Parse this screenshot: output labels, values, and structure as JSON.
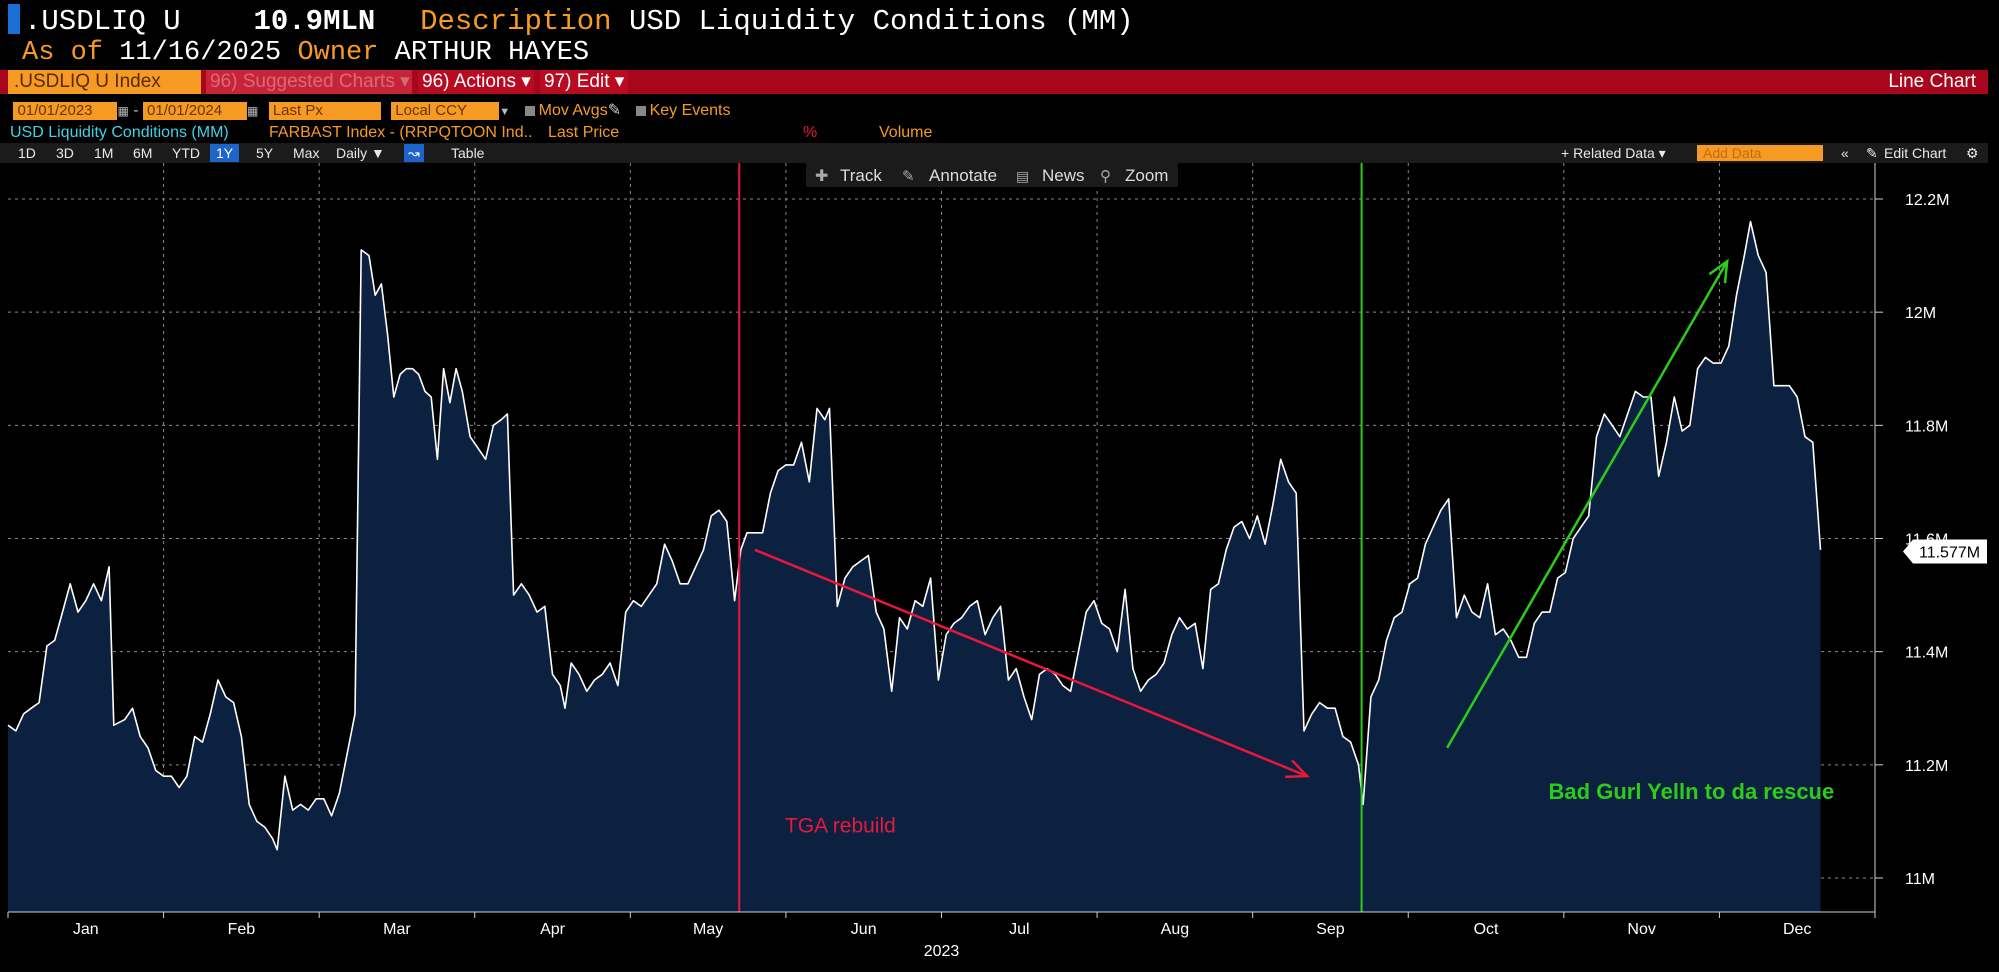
{
  "header": {
    "ticker": ".USDLIQ U",
    "value": "10.9MLN",
    "desc_label": "Description",
    "desc_value": "USD Liquidity Conditions (MM)",
    "asof_label": "As of",
    "asof_value": "11/16/2025",
    "owner_label": "Owner",
    "owner_value": "ARTHUR HAYES"
  },
  "toolbar": {
    "index_field": ".USDLIQ U Index",
    "suggested": "96) Suggested Charts ▾",
    "actions": "96) Actions ▾",
    "edit": "97) Edit ▾",
    "line_chart": "Line Chart"
  },
  "controls": {
    "start_date": "01/01/2023",
    "end_date": "01/01/2024",
    "field": "Last Px",
    "currency": "Local CCY",
    "mov_avgs": "Mov Avgs",
    "key_events": "Key Events"
  },
  "legend": {
    "series1": "USD Liquidity Conditions (MM)",
    "series2": "FARBAST Index - (RRPQTOON Ind..",
    "last_price": "Last Price",
    "percent": "%",
    "volume": "Volume"
  },
  "period_bar": {
    "periods": [
      "1D",
      "3D",
      "1M",
      "6M",
      "YTD",
      "1Y",
      "5Y",
      "Max"
    ],
    "selected": "1Y",
    "frequency": "Daily ▼",
    "table": "Table",
    "related": "+ Related Data ▾",
    "add_data_placeholder": "Add Data",
    "edit_chart": "Edit Chart"
  },
  "chart_tools": {
    "track": "Track",
    "annotate": "Annotate",
    "news": "News",
    "zoom": "Zoom"
  },
  "colors": {
    "fill": "#0c2140",
    "line": "#ffffff",
    "grid": "#8a8a8a",
    "red_annotation": "#e8173c",
    "green_annotation": "#2bcc1a",
    "toolbar_red": "#a8061c",
    "orange": "#f59a23"
  },
  "chart_data": {
    "type": "area",
    "title": "USD Liquidity Conditions (MM)",
    "x_axis": {
      "months": [
        "Jan",
        "Feb",
        "Mar",
        "Apr",
        "May",
        "Jun",
        "Jul",
        "Aug",
        "Sep",
        "Oct",
        "Nov",
        "Dec"
      ],
      "year": "2023",
      "range_months": [
        0,
        12
      ]
    },
    "y_axis": {
      "unit": "M",
      "ticks": [
        11.0,
        11.2,
        11.4,
        11.6,
        11.8,
        12.0,
        12.2
      ],
      "tick_labels": [
        "11M",
        "11.2M",
        "11.4M",
        "11.6M",
        "11.8M",
        "12M",
        "12.2M"
      ],
      "ylim": [
        10.94,
        12.25
      ]
    },
    "last_value_label": "11.577M",
    "last_value": 11.577,
    "series_points_month_value": [
      [
        0.0,
        11.27
      ],
      [
        0.05,
        11.26
      ],
      [
        0.1,
        11.29
      ],
      [
        0.15,
        11.3
      ],
      [
        0.2,
        11.31
      ],
      [
        0.25,
        11.41
      ],
      [
        0.3,
        11.42
      ],
      [
        0.35,
        11.47
      ],
      [
        0.4,
        11.52
      ],
      [
        0.45,
        11.47
      ],
      [
        0.5,
        11.49
      ],
      [
        0.55,
        11.52
      ],
      [
        0.6,
        11.49
      ],
      [
        0.65,
        11.55
      ],
      [
        0.68,
        11.27
      ],
      [
        0.75,
        11.28
      ],
      [
        0.8,
        11.3
      ],
      [
        0.85,
        11.25
      ],
      [
        0.9,
        11.23
      ],
      [
        0.95,
        11.19
      ],
      [
        1.0,
        11.18
      ],
      [
        1.05,
        11.18
      ],
      [
        1.1,
        11.16
      ],
      [
        1.15,
        11.18
      ],
      [
        1.2,
        11.25
      ],
      [
        1.25,
        11.24
      ],
      [
        1.3,
        11.29
      ],
      [
        1.35,
        11.35
      ],
      [
        1.4,
        11.32
      ],
      [
        1.45,
        11.31
      ],
      [
        1.5,
        11.25
      ],
      [
        1.55,
        11.13
      ],
      [
        1.6,
        11.1
      ],
      [
        1.65,
        11.09
      ],
      [
        1.7,
        11.07
      ],
      [
        1.73,
        11.05
      ],
      [
        1.78,
        11.18
      ],
      [
        1.83,
        11.12
      ],
      [
        1.88,
        11.13
      ],
      [
        1.93,
        11.12
      ],
      [
        1.98,
        11.14
      ],
      [
        2.03,
        11.14
      ],
      [
        2.08,
        11.11
      ],
      [
        2.13,
        11.15
      ],
      [
        2.18,
        11.22
      ],
      [
        2.23,
        11.29
      ],
      [
        2.27,
        12.11
      ],
      [
        2.32,
        12.1
      ],
      [
        2.36,
        12.03
      ],
      [
        2.4,
        12.05
      ],
      [
        2.44,
        11.96
      ],
      [
        2.48,
        11.85
      ],
      [
        2.52,
        11.89
      ],
      [
        2.56,
        11.9
      ],
      [
        2.6,
        11.9
      ],
      [
        2.64,
        11.89
      ],
      [
        2.68,
        11.86
      ],
      [
        2.72,
        11.85
      ],
      [
        2.76,
        11.74
      ],
      [
        2.8,
        11.9
      ],
      [
        2.84,
        11.84
      ],
      [
        2.88,
        11.9
      ],
      [
        2.92,
        11.86
      ],
      [
        2.97,
        11.78
      ],
      [
        3.02,
        11.76
      ],
      [
        3.07,
        11.74
      ],
      [
        3.12,
        11.8
      ],
      [
        3.17,
        11.81
      ],
      [
        3.21,
        11.82
      ],
      [
        3.25,
        11.5
      ],
      [
        3.3,
        11.52
      ],
      [
        3.35,
        11.5
      ],
      [
        3.4,
        11.47
      ],
      [
        3.45,
        11.48
      ],
      [
        3.5,
        11.36
      ],
      [
        3.55,
        11.34
      ],
      [
        3.58,
        11.3
      ],
      [
        3.62,
        11.38
      ],
      [
        3.67,
        11.36
      ],
      [
        3.72,
        11.33
      ],
      [
        3.77,
        11.35
      ],
      [
        3.82,
        11.36
      ],
      [
        3.87,
        11.38
      ],
      [
        3.92,
        11.34
      ],
      [
        3.97,
        11.47
      ],
      [
        4.02,
        11.49
      ],
      [
        4.07,
        11.48
      ],
      [
        4.12,
        11.5
      ],
      [
        4.17,
        11.52
      ],
      [
        4.22,
        11.59
      ],
      [
        4.27,
        11.56
      ],
      [
        4.32,
        11.52
      ],
      [
        4.37,
        11.52
      ],
      [
        4.42,
        11.55
      ],
      [
        4.47,
        11.58
      ],
      [
        4.52,
        11.64
      ],
      [
        4.57,
        11.65
      ],
      [
        4.62,
        11.63
      ],
      [
        4.67,
        11.49
      ],
      [
        4.71,
        11.58
      ],
      [
        4.75,
        11.61
      ],
      [
        4.8,
        11.61
      ],
      [
        4.85,
        11.61
      ],
      [
        4.9,
        11.68
      ],
      [
        4.95,
        11.72
      ],
      [
        5.0,
        11.73
      ],
      [
        5.05,
        11.73
      ],
      [
        5.1,
        11.77
      ],
      [
        5.15,
        11.7
      ],
      [
        5.2,
        11.83
      ],
      [
        5.25,
        11.81
      ],
      [
        5.28,
        11.83
      ],
      [
        5.33,
        11.48
      ],
      [
        5.38,
        11.53
      ],
      [
        5.43,
        11.55
      ],
      [
        5.48,
        11.56
      ],
      [
        5.53,
        11.57
      ],
      [
        5.58,
        11.47
      ],
      [
        5.63,
        11.44
      ],
      [
        5.68,
        11.33
      ],
      [
        5.73,
        11.46
      ],
      [
        5.78,
        11.44
      ],
      [
        5.83,
        11.49
      ],
      [
        5.88,
        11.48
      ],
      [
        5.93,
        11.53
      ],
      [
        5.98,
        11.35
      ],
      [
        6.03,
        11.43
      ],
      [
        6.08,
        11.45
      ],
      [
        6.13,
        11.46
      ],
      [
        6.18,
        11.48
      ],
      [
        6.23,
        11.49
      ],
      [
        6.28,
        11.43
      ],
      [
        6.33,
        11.46
      ],
      [
        6.38,
        11.48
      ],
      [
        6.43,
        11.35
      ],
      [
        6.48,
        11.37
      ],
      [
        6.53,
        11.32
      ],
      [
        6.58,
        11.28
      ],
      [
        6.63,
        11.36
      ],
      [
        6.68,
        11.37
      ],
      [
        6.73,
        11.36
      ],
      [
        6.78,
        11.34
      ],
      [
        6.83,
        11.33
      ],
      [
        6.88,
        11.4
      ],
      [
        6.93,
        11.47
      ],
      [
        6.98,
        11.49
      ],
      [
        7.03,
        11.45
      ],
      [
        7.08,
        11.44
      ],
      [
        7.13,
        11.4
      ],
      [
        7.18,
        11.51
      ],
      [
        7.23,
        11.37
      ],
      [
        7.28,
        11.33
      ],
      [
        7.33,
        11.35
      ],
      [
        7.38,
        11.36
      ],
      [
        7.43,
        11.38
      ],
      [
        7.48,
        11.43
      ],
      [
        7.53,
        11.46
      ],
      [
        7.58,
        11.44
      ],
      [
        7.63,
        11.45
      ],
      [
        7.68,
        11.37
      ],
      [
        7.73,
        11.51
      ],
      [
        7.78,
        11.52
      ],
      [
        7.83,
        11.58
      ],
      [
        7.88,
        11.62
      ],
      [
        7.93,
        11.63
      ],
      [
        7.98,
        11.6
      ],
      [
        8.03,
        11.64
      ],
      [
        8.08,
        11.59
      ],
      [
        8.13,
        11.66
      ],
      [
        8.18,
        11.74
      ],
      [
        8.23,
        11.7
      ],
      [
        8.28,
        11.68
      ],
      [
        8.33,
        11.26
      ],
      [
        8.38,
        11.29
      ],
      [
        8.43,
        11.31
      ],
      [
        8.48,
        11.3
      ],
      [
        8.53,
        11.3
      ],
      [
        8.58,
        11.25
      ],
      [
        8.63,
        11.24
      ],
      [
        8.68,
        11.2
      ],
      [
        8.71,
        11.13
      ],
      [
        8.76,
        11.32
      ],
      [
        8.81,
        11.35
      ],
      [
        8.86,
        11.42
      ],
      [
        8.91,
        11.46
      ],
      [
        8.96,
        11.47
      ],
      [
        9.01,
        11.52
      ],
      [
        9.06,
        11.53
      ],
      [
        9.11,
        11.59
      ],
      [
        9.16,
        11.62
      ],
      [
        9.21,
        11.65
      ],
      [
        9.26,
        11.67
      ],
      [
        9.31,
        11.46
      ],
      [
        9.36,
        11.5
      ],
      [
        9.41,
        11.47
      ],
      [
        9.46,
        11.46
      ],
      [
        9.51,
        11.52
      ],
      [
        9.56,
        11.43
      ],
      [
        9.61,
        11.44
      ],
      [
        9.66,
        11.42
      ],
      [
        9.71,
        11.39
      ],
      [
        9.76,
        11.39
      ],
      [
        9.81,
        11.45
      ],
      [
        9.86,
        11.47
      ],
      [
        9.91,
        11.47
      ],
      [
        9.96,
        11.53
      ],
      [
        10.01,
        11.54
      ],
      [
        10.06,
        11.6
      ],
      [
        10.11,
        11.62
      ],
      [
        10.16,
        11.64
      ],
      [
        10.21,
        11.78
      ],
      [
        10.26,
        11.82
      ],
      [
        10.31,
        11.8
      ],
      [
        10.36,
        11.78
      ],
      [
        10.41,
        11.82
      ],
      [
        10.46,
        11.86
      ],
      [
        10.51,
        11.85
      ],
      [
        10.56,
        11.85
      ],
      [
        10.61,
        11.71
      ],
      [
        10.66,
        11.77
      ],
      [
        10.71,
        11.85
      ],
      [
        10.76,
        11.79
      ],
      [
        10.81,
        11.8
      ],
      [
        10.86,
        11.9
      ],
      [
        10.91,
        11.92
      ],
      [
        10.96,
        11.91
      ],
      [
        11.01,
        11.91
      ],
      [
        11.06,
        11.94
      ],
      [
        11.11,
        12.03
      ],
      [
        11.16,
        12.1
      ],
      [
        11.2,
        12.16
      ],
      [
        11.25,
        12.1
      ],
      [
        11.3,
        12.07
      ],
      [
        11.35,
        11.87
      ],
      [
        11.4,
        11.87
      ],
      [
        11.45,
        11.87
      ],
      [
        11.5,
        11.85
      ],
      [
        11.55,
        11.78
      ],
      [
        11.6,
        11.77
      ],
      [
        11.65,
        11.58
      ]
    ],
    "vertical_markers": [
      {
        "month": 4.7,
        "color": "#e8173c"
      },
      {
        "month": 8.7,
        "color": "#2bcc1a"
      }
    ],
    "annotations": [
      {
        "text": "TGA rebuild",
        "color": "#e8173c",
        "month": 5.35,
        "value": 11.08
      },
      {
        "text": "Bad Gurl Yelln to da rescue",
        "color": "#2bcc1a",
        "month": 10.82,
        "value": 11.14
      }
    ],
    "arrows": [
      {
        "color": "#e8173c",
        "from": [
          4.8,
          11.58
        ],
        "to": [
          8.35,
          11.18
        ]
      },
      {
        "color": "#2bcc1a",
        "from": [
          9.25,
          11.23
        ],
        "to": [
          11.05,
          12.09
        ]
      }
    ]
  }
}
